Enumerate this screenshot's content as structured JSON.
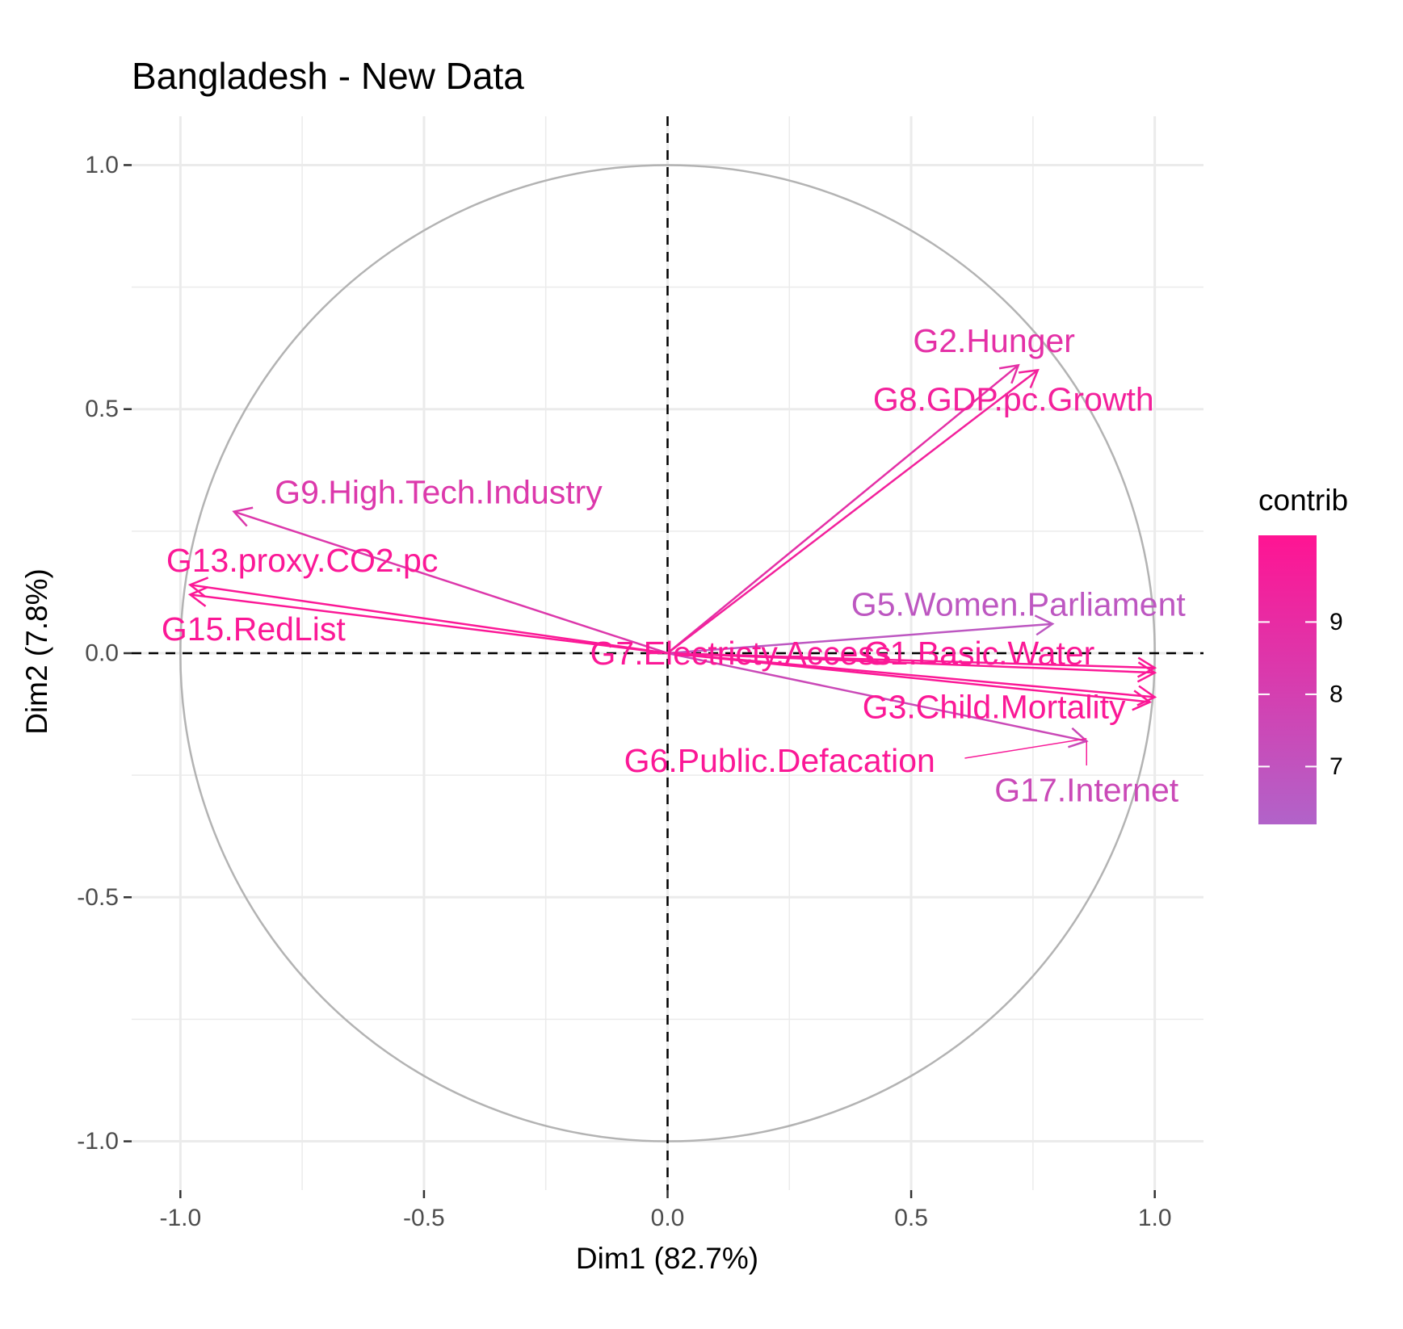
{
  "colors": {
    "low": "#B163C9",
    "high": "#FF1493",
    "grid": "#ebebeb",
    "circle": "#b3b3b3",
    "axis_text": "#4d4d4d"
  },
  "chart_data": {
    "type": "pca-correlation-circle",
    "title": "Bangladesh - New Data",
    "xlabel": "Dim1 (82.7%)",
    "ylabel": "Dim2 (7.8%)",
    "xlim": [
      -1.1,
      1.1
    ],
    "ylim": [
      -1.1,
      1.1
    ],
    "x_ticks": [
      {
        "value": -1.0,
        "label": "-1.0"
      },
      {
        "value": -0.5,
        "label": "-0.5"
      },
      {
        "value": 0.0,
        "label": "0.0"
      },
      {
        "value": 0.5,
        "label": "0.5"
      },
      {
        "value": 1.0,
        "label": "1.0"
      }
    ],
    "y_ticks": [
      {
        "value": 1.0,
        "label": "1.0"
      },
      {
        "value": 0.5,
        "label": "0.5"
      },
      {
        "value": 0.0,
        "label": "0.0"
      },
      {
        "value": -0.5,
        "label": "-0.5"
      },
      {
        "value": -1.0,
        "label": "-1.0"
      }
    ],
    "grid": true,
    "legend": {
      "title": "contrib",
      "position": "right",
      "range": [
        6.2,
        10.2
      ],
      "ticks": [
        {
          "value": 7,
          "label": "7"
        },
        {
          "value": 8,
          "label": "8"
        },
        {
          "value": 9,
          "label": "9"
        }
      ]
    },
    "variables": [
      {
        "name": "G2.Hunger",
        "x": 0.72,
        "y": 0.59,
        "contrib": 8.8,
        "label_x": 0.67,
        "label_y": 0.64
      },
      {
        "name": "G8.GDP.pc.Growth",
        "x": 0.76,
        "y": 0.58,
        "contrib": 9.6,
        "label_x": 0.71,
        "label_y": 0.52
      },
      {
        "name": "G9.High.Tech.Industry",
        "x": -0.89,
        "y": 0.29,
        "contrib": 8.4,
        "label_x": -0.47,
        "label_y": 0.33
      },
      {
        "name": "G13.proxy.CO2.pc",
        "x": -0.98,
        "y": 0.14,
        "contrib": 10.0,
        "label_x": -0.75,
        "label_y": 0.19
      },
      {
        "name": "G15.RedList",
        "x": -0.98,
        "y": 0.12,
        "contrib": 10.0,
        "label_x": -0.85,
        "label_y": 0.05
      },
      {
        "name": "G5.Women.Parliament",
        "x": 0.79,
        "y": 0.06,
        "contrib": 6.8,
        "label_x": 0.72,
        "label_y": 0.1
      },
      {
        "name": "G1.Basic.Water",
        "x": 1.0,
        "y": -0.03,
        "contrib": 10.0,
        "label_x": 0.64,
        "label_y": 0.0
      },
      {
        "name": "G7.Electricty.Access",
        "x": 1.0,
        "y": -0.04,
        "contrib": 10.0,
        "label_x": 0.15,
        "label_y": 0.0
      },
      {
        "name": "G3.Child.Mortality",
        "x": 1.0,
        "y": -0.09,
        "contrib": 10.0,
        "label_x": 0.67,
        "label_y": -0.11
      },
      {
        "name": "G6.Public.Defacation",
        "x": 0.99,
        "y": -0.1,
        "contrib": 10.0,
        "label_x": 0.23,
        "label_y": -0.22
      },
      {
        "name": "G17.Internet",
        "x": 0.86,
        "y": -0.18,
        "contrib": 7.5,
        "label_x": 0.86,
        "label_y": -0.28
      }
    ]
  }
}
